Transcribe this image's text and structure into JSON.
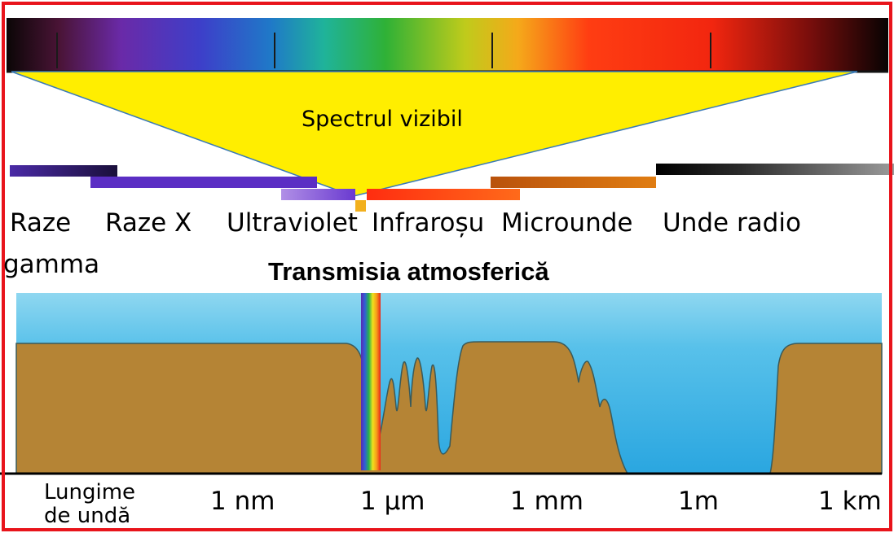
{
  "visible_spectrum_label": "Spectrul vizibil",
  "title": "Transmisia atmosferică",
  "regions": [
    {
      "id": "gamma",
      "line1": "Raze",
      "line2": "gamma"
    },
    {
      "id": "xray",
      "line1": "Raze X"
    },
    {
      "id": "uv",
      "line1": "Ultraviolet"
    },
    {
      "id": "ir",
      "line1": "Infraroșu"
    },
    {
      "id": "micro",
      "line1": "Microunde"
    },
    {
      "id": "radio",
      "line1": "Unde radio"
    }
  ],
  "axis": {
    "label_line1": "Lungime",
    "label_line2": "de undă",
    "ticks": [
      "1 nm",
      "1 µm",
      "1 mm",
      "1m",
      "1 km"
    ]
  },
  "colors": {
    "frame": "#e8141b",
    "cone": "#ffee00",
    "sky": "#59c3ea",
    "ground": "#b58435",
    "gamma_bar": "#3c1e8f",
    "xray_bar": "#5b2ec4",
    "uv_bar": "#9a6fe0",
    "ir_bar": "#ff4a17",
    "micro_bar": "#c9640e",
    "visible_marker": "#f2b01e"
  }
}
